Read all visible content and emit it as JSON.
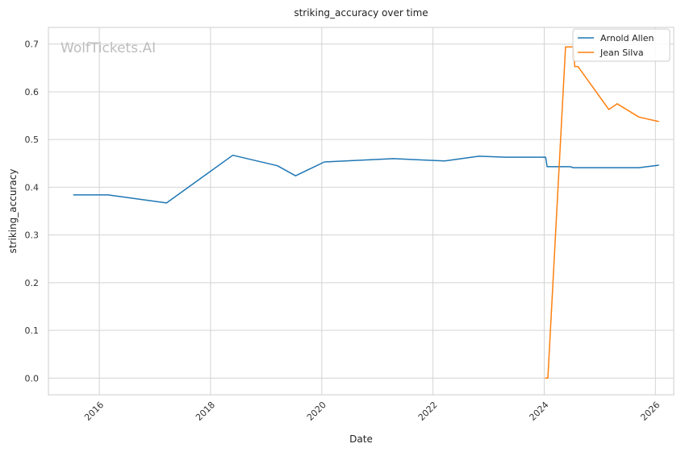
{
  "chart_data": {
    "type": "line",
    "title": "striking_accuracy over time",
    "xlabel": "Date",
    "ylabel": "striking_accuracy",
    "watermark": "WolfTickets.AI",
    "x_ticks": [
      "2016",
      "2018",
      "2020",
      "2022",
      "2024",
      "2026"
    ],
    "y_ticks": [
      "0.0",
      "0.1",
      "0.2",
      "0.3",
      "0.4",
      "0.5",
      "0.6",
      "0.7"
    ],
    "xlim": [
      "2015-02-01",
      "2026-05-01"
    ],
    "ylim": [
      -0.035,
      0.735
    ],
    "grid": true,
    "legend_position": "top-right",
    "series": [
      {
        "name": "Arnold Allen",
        "color": "#1f77b4",
        "points": [
          [
            "2015-07-18",
            0.384
          ],
          [
            "2016-02-27",
            0.384
          ],
          [
            "2017-03-18",
            0.367
          ],
          [
            "2018-05-27",
            0.467
          ],
          [
            "2019-03-16",
            0.445
          ],
          [
            "2019-07-13",
            0.424
          ],
          [
            "2020-01-18",
            0.453
          ],
          [
            "2021-04-17",
            0.46
          ],
          [
            "2022-03-19",
            0.455
          ],
          [
            "2022-10-29",
            0.465
          ],
          [
            "2023-04-22",
            0.463
          ],
          [
            "2024-01-10",
            0.463
          ],
          [
            "2024-01-20",
            0.443
          ],
          [
            "2024-06-20",
            0.443
          ],
          [
            "2024-07-10",
            0.441
          ],
          [
            "2025-09-15",
            0.441
          ],
          [
            "2026-01-20",
            0.446
          ]
        ]
      },
      {
        "name": "Jean Silva",
        "color": "#ff7f0e",
        "points": [
          [
            "2024-01-10",
            0.0
          ],
          [
            "2024-01-25",
            0.0
          ],
          [
            "2024-05-20",
            0.694
          ],
          [
            "2024-07-10",
            0.694
          ],
          [
            "2024-07-20",
            0.653
          ],
          [
            "2024-08-10",
            0.653
          ],
          [
            "2025-03-01",
            0.563
          ],
          [
            "2025-04-25",
            0.575
          ],
          [
            "2025-09-15",
            0.547
          ],
          [
            "2026-01-20",
            0.538
          ]
        ]
      }
    ]
  }
}
